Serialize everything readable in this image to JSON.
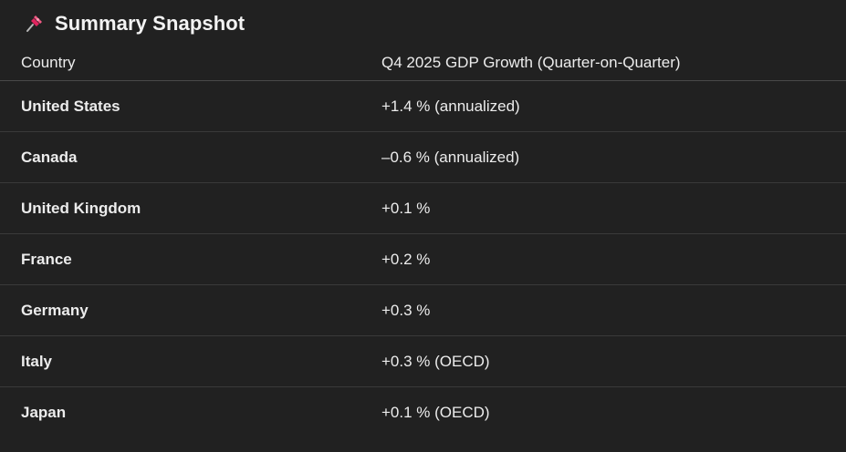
{
  "heading": {
    "icon": "pushpin-icon",
    "title": "Summary Snapshot"
  },
  "table": {
    "headers": [
      "Country",
      "Q4 2025 GDP Growth (Quarter-on-Quarter)"
    ],
    "rows": [
      {
        "country": "United States",
        "growth": "+1.4 % (annualized)"
      },
      {
        "country": "Canada",
        "growth": "–0.6 % (annualized)"
      },
      {
        "country": "United Kingdom",
        "growth": "+0.1 %"
      },
      {
        "country": "France",
        "growth": "+0.2 %"
      },
      {
        "country": "Germany",
        "growth": "+0.3 %"
      },
      {
        "country": "Italy",
        "growth": "+0.3 % (OECD)"
      },
      {
        "country": "Japan",
        "growth": "+0.1 % (OECD)"
      }
    ]
  },
  "colors": {
    "background": "#212121",
    "text": "#ececec",
    "divider": "#3a3a3a",
    "pin": "#e0245e"
  }
}
